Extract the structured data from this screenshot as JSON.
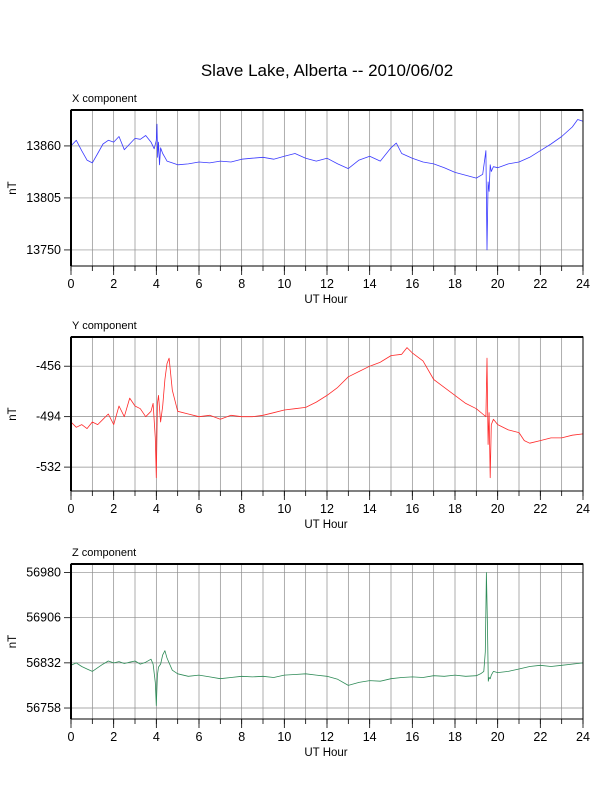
{
  "title": "Slave Lake, Alberta -- 2010/06/02",
  "chart_data": [
    {
      "type": "line",
      "title": "X component",
      "xlabel": "UT Hour",
      "ylabel": "nT",
      "xlim": [
        0,
        24
      ],
      "ylim": [
        13733,
        13898
      ],
      "xticks": [
        0,
        2,
        4,
        6,
        8,
        10,
        12,
        14,
        16,
        18,
        20,
        22,
        24
      ],
      "yticks": [
        13750,
        13805,
        13860
      ],
      "grid": true,
      "color": "#3b3bff",
      "series": [
        {
          "x": [
            0,
            0.25,
            0.5,
            0.75,
            1,
            1.25,
            1.5,
            1.75,
            2,
            2.25,
            2.5,
            2.75,
            3,
            3.25,
            3.5,
            3.75,
            3.9,
            4.0,
            4.03,
            4.06,
            4.1,
            4.15,
            4.2,
            4.3,
            4.4,
            4.5,
            4.75,
            5,
            5.5,
            6,
            6.5,
            7,
            7.5,
            8,
            8.5,
            9,
            9.5,
            10,
            10.5,
            11,
            11.5,
            12,
            12.5,
            13,
            13.5,
            14,
            14.5,
            15,
            15.25,
            15.5,
            16,
            16.5,
            17,
            17.5,
            18,
            18.5,
            19,
            19.3,
            19.45,
            19.5,
            19.55,
            19.6,
            19.65,
            19.7,
            19.8,
            20,
            20.5,
            21,
            21.5,
            22,
            22.5,
            23,
            23.5,
            23.75,
            24
          ],
          "y": [
            13860,
            13866,
            13855,
            13845,
            13842,
            13852,
            13862,
            13866,
            13864,
            13870,
            13856,
            13862,
            13868,
            13867,
            13871,
            13864,
            13857,
            13866,
            13883,
            13848,
            13864,
            13840,
            13858,
            13852,
            13848,
            13844,
            13842,
            13840,
            13841,
            13843,
            13842,
            13844,
            13843,
            13846,
            13847,
            13848,
            13846,
            13849,
            13852,
            13847,
            13844,
            13847,
            13841,
            13836,
            13845,
            13849,
            13844,
            13858,
            13863,
            13852,
            13847,
            13843,
            13841,
            13837,
            13832,
            13829,
            13826,
            13830,
            13855,
            13750,
            13822,
            13812,
            13840,
            13833,
            13838,
            13837,
            13841,
            13843,
            13848,
            13855,
            13862,
            13870,
            13880,
            13888,
            13886
          ]
        }
      ]
    },
    {
      "type": "line",
      "title": "Y component",
      "xlabel": "UT Hour",
      "ylabel": "nT",
      "xlim": [
        0,
        24
      ],
      "ylim": [
        -550,
        -434
      ],
      "xticks": [
        0,
        2,
        4,
        6,
        8,
        10,
        12,
        14,
        16,
        18,
        20,
        22,
        24
      ],
      "yticks": [
        -456,
        -494,
        -532
      ],
      "grid": true,
      "color": "#ff2a2a",
      "series": [
        {
          "x": [
            0,
            0.25,
            0.5,
            0.75,
            1,
            1.25,
            1.5,
            1.75,
            2,
            2.25,
            2.5,
            2.75,
            3,
            3.25,
            3.5,
            3.75,
            3.85,
            3.95,
            4.0,
            4.05,
            4.1,
            4.2,
            4.3,
            4.4,
            4.5,
            4.6,
            4.75,
            5,
            5.5,
            6,
            6.5,
            7,
            7.5,
            8,
            8.5,
            9,
            9.5,
            10,
            10.5,
            11,
            11.5,
            12,
            12.5,
            13,
            13.5,
            14,
            14.5,
            15,
            15.5,
            15.75,
            16,
            16.5,
            17,
            17.5,
            18,
            18.5,
            19,
            19.3,
            19.45,
            19.5,
            19.55,
            19.6,
            19.65,
            19.7,
            19.8,
            20,
            20.5,
            21,
            21.25,
            21.5,
            22,
            22.5,
            23,
            23.5,
            24
          ],
          "y": [
            -498,
            -502,
            -500,
            -503,
            -498,
            -500,
            -496,
            -492,
            -500,
            -486,
            -494,
            -480,
            -486,
            -488,
            -494,
            -490,
            -484,
            -510,
            -540,
            -484,
            -478,
            -498,
            -486,
            -466,
            -454,
            -450,
            -474,
            -490,
            -492,
            -494,
            -493,
            -496,
            -493,
            -494,
            -494,
            -493,
            -491,
            -489,
            -488,
            -487,
            -483,
            -478,
            -472,
            -464,
            -460,
            -456,
            -453,
            -448,
            -447,
            -442,
            -446,
            -452,
            -466,
            -472,
            -478,
            -484,
            -488,
            -492,
            -494,
            -450,
            -515,
            -491,
            -540,
            -500,
            -496,
            -500,
            -504,
            -506,
            -512,
            -514,
            -512,
            -510,
            -510,
            -508,
            -507
          ]
        }
      ]
    },
    {
      "type": "line",
      "title": "Z component",
      "xlabel": "UT Hour",
      "ylabel": "nT",
      "xlim": [
        0,
        24
      ],
      "ylim": [
        56740,
        56994
      ],
      "xticks": [
        0,
        2,
        4,
        6,
        8,
        10,
        12,
        14,
        16,
        18,
        20,
        22,
        24
      ],
      "yticks": [
        56758,
        56832,
        56906,
        56980
      ],
      "grid": true,
      "color": "#2e8b57",
      "series": [
        {
          "x": [
            0,
            0.25,
            0.5,
            0.75,
            1,
            1.25,
            1.5,
            1.75,
            2,
            2.25,
            2.5,
            2.75,
            3,
            3.25,
            3.5,
            3.75,
            3.85,
            3.95,
            4.0,
            4.05,
            4.1,
            4.2,
            4.3,
            4.4,
            4.5,
            4.6,
            4.75,
            5,
            5.5,
            6,
            6.5,
            7,
            7.5,
            8,
            8.5,
            9,
            9.5,
            10,
            10.5,
            11,
            11.5,
            12,
            12.5,
            13,
            13.5,
            14,
            14.5,
            15,
            15.5,
            16,
            16.5,
            17,
            17.5,
            18,
            18.5,
            19,
            19.2,
            19.35,
            19.42,
            19.47,
            19.52,
            19.56,
            19.6,
            19.65,
            19.7,
            19.8,
            20,
            20.5,
            21,
            21.5,
            22,
            22.5,
            23,
            23.5,
            24
          ],
          "y": [
            56828,
            56832,
            56826,
            56822,
            56818,
            56824,
            56830,
            56835,
            56832,
            56834,
            56831,
            56833,
            56835,
            56830,
            56833,
            56838,
            56830,
            56800,
            56762,
            56812,
            56825,
            56830,
            56845,
            56852,
            56840,
            56832,
            56820,
            56814,
            56810,
            56812,
            56809,
            56806,
            56808,
            56810,
            56809,
            56810,
            56808,
            56812,
            56813,
            56814,
            56812,
            56810,
            56805,
            56795,
            56800,
            56803,
            56802,
            56806,
            56808,
            56809,
            56808,
            56811,
            56810,
            56812,
            56810,
            56811,
            56814,
            56818,
            56850,
            56980,
            56898,
            56802,
            56808,
            56806,
            56812,
            56818,
            56816,
            56818,
            56822,
            56826,
            56828,
            56826,
            56828,
            56830,
            56832
          ]
        }
      ]
    }
  ]
}
